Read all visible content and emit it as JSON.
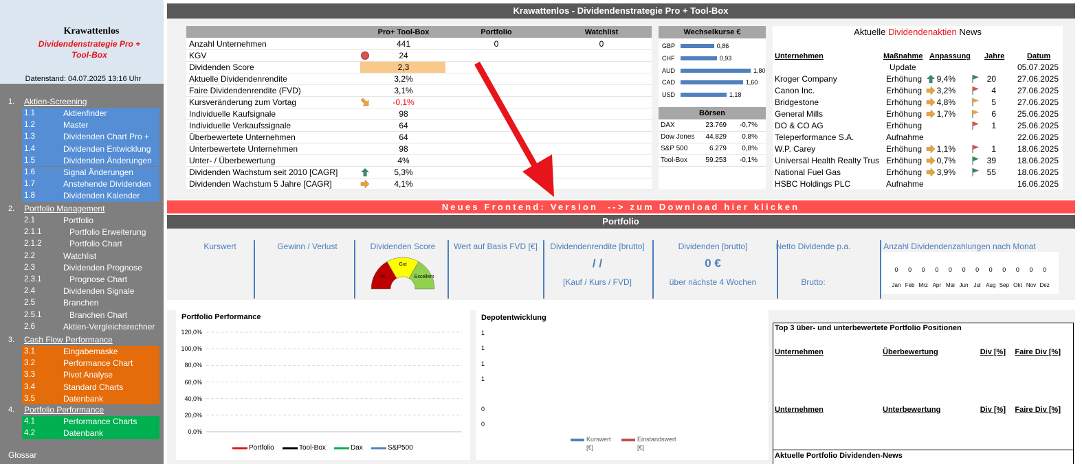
{
  "header": {
    "title": "Krawattenlos - Dividendenstrategie Pro + Tool-Box"
  },
  "sidebar": {
    "brand": "Krawattenlos",
    "subtitle": "Dividendenstrategie Pro + Tool-Box",
    "date": "Datenstand: 04.07.2025 13:16 Uhr",
    "sections": [
      {
        "num": "1.",
        "title": "Aktien-Screening",
        "color": "#558ed5",
        "items": [
          {
            "num": "1.1",
            "name": "Aktienfinder"
          },
          {
            "num": "1.2",
            "name": "Master"
          },
          {
            "num": "1.3",
            "name": "Dividenden Chart Pro +"
          },
          {
            "num": "1.4",
            "name": "Dividenden Entwicklung"
          },
          {
            "num": "1.5",
            "name": "Dividenden Änderungen"
          },
          {
            "num": "1.6",
            "name": "Signal Änderungen"
          },
          {
            "num": "1.7",
            "name": "Anstehende Dividenden"
          },
          {
            "num": "1.8",
            "name": "Dividenden Kalender"
          }
        ]
      },
      {
        "num": "2.",
        "title": "Portfolio Management",
        "color": "#7f7f7f",
        "items": [
          {
            "num": "2.1",
            "name": "Portfolio"
          },
          {
            "num": "2.1.1",
            "name": "Portfolio Erweiterung"
          },
          {
            "num": "2.1.2",
            "name": "Portfolio Chart"
          },
          {
            "num": "2.2",
            "name": "Watchlist"
          },
          {
            "num": "2.3",
            "name": "Dividenden Prognose"
          },
          {
            "num": "2.3.1",
            "name": "Prognose Chart"
          },
          {
            "num": "2.4",
            "name": "Dividenden Signale"
          },
          {
            "num": "2.5",
            "name": "Branchen"
          },
          {
            "num": "2.5.1",
            "name": "Branchen Chart"
          },
          {
            "num": "2.6",
            "name": "Aktien-Vergleichsrechner"
          }
        ]
      },
      {
        "num": "3.",
        "title": "Cash Flow Performance",
        "color": "#e46c0a",
        "items": [
          {
            "num": "3.1",
            "name": "Eingabemaske"
          },
          {
            "num": "3.2",
            "name": "Performance Chart"
          },
          {
            "num": "3.3",
            "name": "Pivot Analyse"
          },
          {
            "num": "3.4",
            "name": "Standard Charts"
          },
          {
            "num": "3.5",
            "name": "Datenbank"
          }
        ]
      },
      {
        "num": "4.",
        "title": "Portfolio Performance",
        "color": "#00b050",
        "items": [
          {
            "num": "4.1",
            "name": "Performance Charts"
          },
          {
            "num": "4.2",
            "name": "Datenbank"
          }
        ]
      }
    ],
    "glossar": "Glossar"
  },
  "kpi": {
    "columns": [
      "Pro+ Tool-Box",
      "Portfolio",
      "Watchlist"
    ],
    "rows": [
      {
        "label": "Anzahl Unternehmen",
        "values": [
          "441",
          "0",
          "0"
        ]
      },
      {
        "label": "KGV",
        "icon": "circle-red",
        "values": [
          "24"
        ]
      },
      {
        "label": "Dividenden Score",
        "highlight": "#f9c98a",
        "values": [
          "2,3"
        ]
      },
      {
        "label": "Aktuelle Dividendenrendite",
        "values": [
          "3,2%"
        ]
      },
      {
        "label": "Faire Dividendenrendite (FVD)",
        "values": [
          "3,1%"
        ]
      },
      {
        "label": "Kursveränderung zum Vortag",
        "icon": "diag-orange",
        "color": "#ff0000",
        "values": [
          "-0,1%"
        ]
      },
      {
        "label": "Individuelle Kaufsignale",
        "values": [
          "98"
        ]
      },
      {
        "label": "Individuelle Verkaufssignale",
        "values": [
          "64"
        ]
      },
      {
        "label": "Überbewertete Unternehmen",
        "values": [
          "64"
        ]
      },
      {
        "label": "Unterbewertete Unternehmen",
        "values": [
          "98"
        ]
      },
      {
        "label": "Unter- / Überbewertung",
        "values": [
          "4%"
        ]
      },
      {
        "label": "Dividenden Wachstum seit 2010 [CAGR]",
        "icon": "up-green",
        "values": [
          "5,3%"
        ]
      },
      {
        "label": "Dividenden Wachstum 5 Jahre [CAGR]",
        "icon": "right-orange",
        "values": [
          "4,1%"
        ]
      }
    ]
  },
  "fx": {
    "title": "Wechselkurse €",
    "color": "#4f81bd",
    "rows": [
      {
        "code": "GBP",
        "value": 0.86,
        "label": "0,86"
      },
      {
        "code": "CHF",
        "value": 0.93,
        "label": "0,93"
      },
      {
        "code": "AUD",
        "value": 1.8,
        "label": "1,80"
      },
      {
        "code": "CAD",
        "value": 1.6,
        "label": "1,60"
      },
      {
        "code": "USD",
        "value": 1.18,
        "label": "1,18"
      }
    ]
  },
  "boersen": {
    "title": "Börsen",
    "rows": [
      [
        "DAX",
        "23.769",
        "-0,7%"
      ],
      [
        "Dow Jones",
        "44.829",
        "0,8%"
      ],
      [
        "S&P 500",
        "6.279",
        "0,8%"
      ],
      [
        "Tool-Box",
        "59.253",
        "-0,1%"
      ]
    ]
  },
  "news": {
    "title": [
      "Aktuelle ",
      "Dividendenaktien",
      " News"
    ],
    "columns": [
      "Unternehmen",
      "Maßnahme",
      "Anpassung",
      "Jahre",
      "Datum"
    ],
    "rows": [
      {
        "measure": "Update",
        "date": "05.07.2025"
      },
      {
        "company": "Kroger Company",
        "measure": "Erhöhung",
        "arrow": "up-green",
        "change": "9,4%",
        "flag": "#2e8b57",
        "years": "20",
        "date": "27.06.2025"
      },
      {
        "company": "Canon Inc.",
        "measure": "Erhöhung",
        "arrow": "right-orange",
        "change": "3,2%",
        "flag": "#d9534f",
        "years": "4",
        "date": "27.06.2025"
      },
      {
        "company": "Bridgestone",
        "measure": "Erhöhung",
        "arrow": "right-orange",
        "change": "4,8%",
        "flag": "#e8a33d",
        "years": "5",
        "date": "27.06.2025"
      },
      {
        "company": "General Mills",
        "measure": "Erhöhung",
        "arrow": "right-orange",
        "change": "1,7%",
        "flag": "#e8a33d",
        "years": "6",
        "date": "25.06.2025"
      },
      {
        "company": "DO & CO AG",
        "measure": "Erhöhung",
        "flag": "#d9534f",
        "years": "1",
        "date": "25.06.2025"
      },
      {
        "company": "Teleperformance S.A.",
        "measure": "Aufnahme",
        "date": "22.06.2025"
      },
      {
        "company": "W.P. Carey",
        "measure": "Erhöhung",
        "arrow": "right-orange",
        "change": "1,1%",
        "flag": "#d9534f",
        "years": "1",
        "date": "18.06.2025"
      },
      {
        "company": "Universal Health Realty Trus",
        "measure": "Erhöhung",
        "arrow": "right-orange",
        "change": "0,7%",
        "flag": "#2e8b57",
        "years": "39",
        "date": "18.06.2025"
      },
      {
        "company": "National Fuel Gas",
        "measure": "Erhöhung",
        "arrow": "right-orange",
        "change": "3,9%",
        "flag": "#2e8b57",
        "years": "55",
        "date": "18.06.2025"
      },
      {
        "company": "HSBC Holdings PLC",
        "measure": "Aufnahme",
        "date": "16.06.2025"
      }
    ]
  },
  "banner": "Neues Frontend: Version  --> zum Download hier klicken",
  "portfolio": {
    "title": "Portfolio",
    "tiles": [
      {
        "title": "Kurswert"
      },
      {
        "title": "Gewinn / Verlust"
      },
      {
        "title": "Dividenden Score",
        "gauge": [
          "0%",
          "Gut",
          "Excellent"
        ]
      },
      {
        "title": "Wert auf Basis FVD [€]"
      },
      {
        "title": "Dividendenrendite [brutto]",
        "value": "/ /",
        "sub": "[Kauf / Kurs / FVD]"
      },
      {
        "title": "Dividenden [brutto]",
        "value": "0 €",
        "sub": "über nächste 4 Wochen"
      },
      {
        "title": "Netto Dividende p.a.",
        "sub": "Brutto:"
      },
      {
        "title": "Anzahl Dividendenzahlungen nach Monat",
        "months": [
          "Jan",
          "Feb",
          "Mrz",
          "Apr",
          "Mai",
          "Jun",
          "Jul",
          "Aug",
          "Sep",
          "Okt",
          "Nov",
          "Dez"
        ],
        "counts": [
          0,
          0,
          0,
          0,
          0,
          0,
          0,
          0,
          0,
          0,
          0,
          0
        ]
      }
    ]
  },
  "perf": {
    "title": "Portfolio Performance",
    "ylim": [
      0,
      1.2
    ],
    "yticks": [
      {
        "value": 0,
        "label": "0,0%"
      },
      {
        "value": 0.2,
        "label": "20,0%"
      },
      {
        "value": 0.4,
        "label": "40,0%"
      },
      {
        "value": 0.6,
        "label": "60,0%"
      },
      {
        "value": 0.8,
        "label": "80,0%"
      },
      {
        "value": 1.0,
        "label": "100,0%"
      },
      {
        "value": 1.2,
        "label": "120,0%"
      }
    ],
    "grid": true,
    "series": [
      {
        "name": "Portfolio",
        "color": "#e8141b"
      },
      {
        "name": "Tool-Box",
        "color": "#000000"
      },
      {
        "name": "Dax",
        "color": "#00b050"
      },
      {
        "name": "S&P500",
        "color": "#4f81bd"
      }
    ]
  },
  "depot": {
    "title": "Depotentwicklung",
    "axis_labels": [
      "1",
      "1",
      "1",
      "1",
      "0",
      "0"
    ],
    "series": [
      {
        "name": "Kurswert [€]",
        "color": "#4f81bd"
      },
      {
        "name": "Einstandswert [€]",
        "color": "#c0504d"
      }
    ]
  },
  "top3": {
    "title": "Top 3 über- und unterbewertete Portfolio Positionen",
    "over_columns": [
      "Unternehmen",
      "Überbewertung",
      "Div [%]",
      "Faire Div [%]"
    ],
    "under_columns": [
      "Unternehmen",
      "Unterbewertung",
      "Div [%]",
      "Faire Div [%]"
    ],
    "news_title": "Aktuelle Portfolio Dividenden-News"
  }
}
